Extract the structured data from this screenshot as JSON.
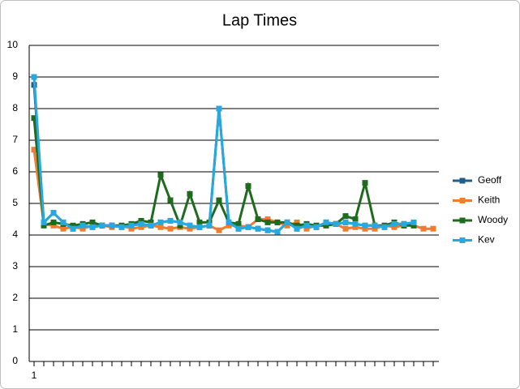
{
  "chart_data": {
    "type": "line",
    "title": "Lap Times",
    "categories": [
      "1",
      null,
      null,
      null,
      null,
      null,
      null,
      null,
      null,
      null,
      null,
      null,
      null,
      null,
      null,
      null,
      null,
      null,
      null,
      null,
      null,
      null,
      null,
      null,
      null,
      null,
      null,
      null,
      null,
      null,
      null,
      null,
      null,
      null,
      null,
      null,
      null,
      null,
      null,
      null,
      null,
      null
    ],
    "series": [
      {
        "name": "Geoff",
        "color": "#1f5f8b",
        "values": [
          8.75,
          4.4,
          4.7,
          4.4,
          4.2,
          4.3,
          4.25,
          4.3,
          4.3,
          4.25,
          4.3,
          4.35,
          4.3,
          4.4,
          4.45,
          4.4,
          4.3,
          4.25,
          4.3,
          8.0,
          4.4,
          4.2,
          4.25,
          4.2,
          4.15,
          4.1,
          4.4,
          4.2,
          4.3,
          4.25,
          4.4,
          4.35,
          4.4,
          4.35,
          4.3,
          4.3,
          4.25,
          4.35,
          4.35,
          4.35,
          null,
          null
        ]
      },
      {
        "name": "Keith",
        "color": "#ed7d31",
        "values": [
          6.7,
          4.35,
          4.3,
          4.2,
          4.25,
          4.2,
          4.3,
          4.3,
          4.25,
          4.3,
          4.2,
          4.25,
          4.3,
          4.25,
          4.2,
          4.25,
          4.2,
          4.25,
          4.3,
          4.15,
          4.3,
          4.3,
          4.25,
          4.5,
          4.5,
          4.4,
          4.3,
          4.4,
          4.2,
          4.3,
          4.3,
          4.35,
          4.2,
          4.25,
          4.2,
          4.2,
          4.3,
          4.25,
          4.3,
          4.3,
          4.2,
          4.2
        ]
      },
      {
        "name": "Woody",
        "color": "#1e6b1e",
        "values": [
          7.7,
          4.3,
          4.4,
          4.35,
          4.3,
          4.35,
          4.4,
          4.3,
          4.3,
          4.3,
          4.35,
          4.45,
          4.4,
          5.9,
          5.1,
          4.3,
          5.3,
          4.4,
          4.4,
          5.1,
          4.4,
          4.35,
          5.55,
          4.5,
          4.4,
          4.4,
          4.4,
          4.3,
          4.35,
          4.3,
          4.3,
          4.35,
          4.6,
          4.5,
          5.65,
          4.3,
          4.3,
          4.4,
          4.3,
          4.3,
          null,
          null
        ]
      },
      {
        "name": "Kev",
        "color": "#27a8e0",
        "values": [
          9.0,
          4.4,
          4.7,
          4.4,
          4.2,
          4.3,
          4.25,
          4.3,
          4.3,
          4.25,
          4.3,
          4.35,
          4.3,
          4.4,
          4.45,
          4.4,
          4.3,
          4.25,
          4.3,
          8.0,
          4.4,
          4.2,
          4.25,
          4.2,
          4.15,
          4.1,
          4.4,
          4.2,
          4.3,
          4.25,
          4.4,
          4.35,
          4.4,
          4.35,
          4.3,
          4.3,
          4.25,
          4.35,
          4.35,
          4.4,
          null,
          null
        ]
      }
    ],
    "ylim": [
      0,
      10
    ],
    "yticks": [
      0,
      1,
      2,
      3,
      4,
      5,
      6,
      7,
      8,
      9,
      10
    ],
    "grid": true,
    "legend": "right"
  }
}
